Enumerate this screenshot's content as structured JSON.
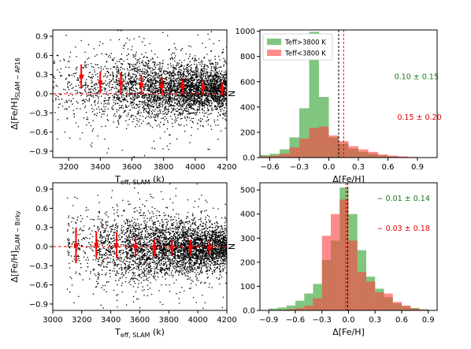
{
  "chart_data": [
    {
      "id": "tl",
      "type": "scatter",
      "xlabel_main": "T",
      "xlabel_sub": "eff, SLAM",
      "xlabel_unit": " (k)",
      "ylabel_main": "Δ[Fe/H]",
      "ylabel_sub": "SLAM − AP16",
      "xlim": [
        3100,
        4200
      ],
      "ylim": [
        -1.0,
        1.0
      ],
      "xticks": [
        3200,
        3400,
        3600,
        3800,
        4000,
        4200
      ],
      "yticks": [
        0.9,
        0.6,
        0.3,
        0.0,
        -0.3,
        -0.6,
        -0.9
      ],
      "reference_line": 0.0,
      "scatter_colour": "#000000",
      "binned_colour": "#ff0000",
      "scatter_density": [
        {
          "x0": 3100,
          "x1": 3300,
          "n": 140,
          "mu": 0.05,
          "sd": 0.28
        },
        {
          "x0": 3300,
          "x1": 3500,
          "n": 300,
          "mu": 0.1,
          "sd": 0.27
        },
        {
          "x0": 3500,
          "x1": 3700,
          "n": 650,
          "mu": 0.1,
          "sd": 0.25
        },
        {
          "x0": 3700,
          "x1": 3900,
          "n": 1000,
          "mu": 0.08,
          "sd": 0.22
        },
        {
          "x0": 3900,
          "x1": 4100,
          "n": 1300,
          "mu": 0.07,
          "sd": 0.19
        },
        {
          "x0": 4100,
          "x1": 4200,
          "n": 700,
          "mu": 0.07,
          "sd": 0.17
        }
      ],
      "binned": [
        {
          "x": 3280,
          "y": 0.27,
          "err": 0.19
        },
        {
          "x": 3400,
          "y": 0.18,
          "err": 0.17
        },
        {
          "x": 3530,
          "y": 0.17,
          "err": 0.16
        },
        {
          "x": 3660,
          "y": 0.14,
          "err": 0.15
        },
        {
          "x": 3790,
          "y": 0.12,
          "err": 0.14
        },
        {
          "x": 3920,
          "y": 0.12,
          "err": 0.12
        },
        {
          "x": 4050,
          "y": 0.1,
          "err": 0.11
        },
        {
          "x": 4170,
          "y": 0.08,
          "err": 0.1
        }
      ]
    },
    {
      "id": "tr",
      "type": "bar",
      "xlabel_main": "Δ[Fe/H]",
      "ylabel_main": "N",
      "xlim": [
        -0.7,
        1.1
      ],
      "ylim": [
        0,
        1010
      ],
      "xticks": [
        -0.6,
        -0.3,
        0.0,
        0.3,
        0.6,
        0.9
      ],
      "yticks": [
        0,
        200,
        400,
        600,
        800,
        1000
      ],
      "bin_width": 0.1,
      "legend": "top-left",
      "series": [
        {
          "name": "Teff>3800 K",
          "colour": "#2ca02c",
          "bin_start": -0.7,
          "counts": [
            20,
            30,
            65,
            160,
            390,
            995,
            480,
            160,
            110,
            70,
            45,
            30,
            15,
            10,
            5,
            3,
            2,
            1
          ]
        },
        {
          "name": "Teff<3800 K",
          "colour": "#ff4040",
          "bin_start": -0.7,
          "counts": [
            10,
            15,
            30,
            80,
            150,
            235,
            245,
            175,
            130,
            90,
            65,
            45,
            25,
            15,
            10,
            5,
            3,
            2
          ]
        }
      ],
      "vlines": [
        {
          "x": 0.1,
          "colour": "#000000",
          "style": "dashed"
        },
        {
          "x": 0.15,
          "colour": "#ff0000",
          "style": "dashed"
        }
      ],
      "annotations": [
        {
          "text": "0.10 ± 0.15",
          "colour": "#1a7a1a",
          "x": 0.89,
          "y": 620
        },
        {
          "text": "0.15 ± 0.20",
          "colour": "#e00000",
          "x": 0.92,
          "y": 300
        }
      ]
    },
    {
      "id": "bl",
      "type": "scatter",
      "xlabel_main": "T",
      "xlabel_sub": "eff, SLAM",
      "xlabel_unit": " (k)",
      "ylabel_main": "Δ[Fe/H]",
      "ylabel_sub": "SLAM − Birky",
      "xlim": [
        3000,
        4200
      ],
      "ylim": [
        -1.0,
        1.0
      ],
      "xticks": [
        3000,
        3200,
        3400,
        3600,
        3800,
        4000,
        4200
      ],
      "yticks": [
        0.9,
        0.6,
        0.3,
        0.0,
        -0.3,
        -0.6,
        -0.9
      ],
      "reference_line": 0.0,
      "scatter_colour": "#000000",
      "binned_colour": "#ff0000",
      "scatter_density": [
        {
          "x0": 3100,
          "x1": 3300,
          "n": 160,
          "mu": 0.0,
          "sd": 0.28
        },
        {
          "x0": 3300,
          "x1": 3500,
          "n": 420,
          "mu": 0.0,
          "sd": 0.27
        },
        {
          "x0": 3500,
          "x1": 3700,
          "n": 800,
          "mu": -0.01,
          "sd": 0.25
        },
        {
          "x0": 3700,
          "x1": 3900,
          "n": 1000,
          "mu": -0.02,
          "sd": 0.22
        },
        {
          "x0": 3900,
          "x1": 4100,
          "n": 1200,
          "mu": -0.02,
          "sd": 0.19
        },
        {
          "x0": 4100,
          "x1": 4200,
          "n": 600,
          "mu": -0.03,
          "sd": 0.17
        }
      ],
      "binned": [
        {
          "x": 3160,
          "y": 0.02,
          "err": 0.28
        },
        {
          "x": 3300,
          "y": 0.03,
          "err": 0.21
        },
        {
          "x": 3440,
          "y": 0.02,
          "err": 0.2
        },
        {
          "x": 3570,
          "y": 0.0,
          "err": 0.15
        },
        {
          "x": 3700,
          "y": -0.02,
          "err": 0.14
        },
        {
          "x": 3820,
          "y": -0.02,
          "err": 0.13
        },
        {
          "x": 3950,
          "y": -0.01,
          "err": 0.12
        },
        {
          "x": 4080,
          "y": -0.02,
          "err": 0.11
        }
      ]
    },
    {
      "id": "br",
      "type": "bar",
      "xlabel_main": "Δ[Fe/H]",
      "ylabel_main": "N",
      "xlim": [
        -1.0,
        1.0
      ],
      "ylim": [
        0,
        530
      ],
      "xticks": [
        -0.9,
        -0.6,
        -0.3,
        0.0,
        0.3,
        0.6,
        0.9
      ],
      "yticks": [
        0,
        100,
        200,
        300,
        400,
        500
      ],
      "bin_width": 0.1,
      "series": [
        {
          "name": "Teff>3800 K",
          "colour": "#2ca02c",
          "bin_start": -0.9,
          "counts": [
            8,
            12,
            20,
            40,
            70,
            110,
            210,
            290,
            510,
            400,
            250,
            140,
            90,
            55,
            30,
            18,
            10,
            5
          ]
        },
        {
          "name": "Teff<3800 K",
          "colour": "#ff4040",
          "bin_start": -0.9,
          "counts": [
            0,
            2,
            5,
            10,
            20,
            50,
            310,
            400,
            460,
            290,
            160,
            120,
            75,
            70,
            35,
            20,
            8,
            3
          ]
        }
      ],
      "vlines": [
        {
          "x": -0.01,
          "colour": "#000000",
          "style": "dashed"
        },
        {
          "x": -0.03,
          "colour": "#ff0000",
          "style": "dashed"
        }
      ],
      "annotations": [
        {
          "text": "− 0.01 ± 0.14",
          "colour": "#1a7a1a",
          "x": 0.62,
          "y": 455
        },
        {
          "text": "− 0.03 ± 0.18",
          "colour": "#e00000",
          "x": 0.62,
          "y": 330
        }
      ]
    }
  ]
}
